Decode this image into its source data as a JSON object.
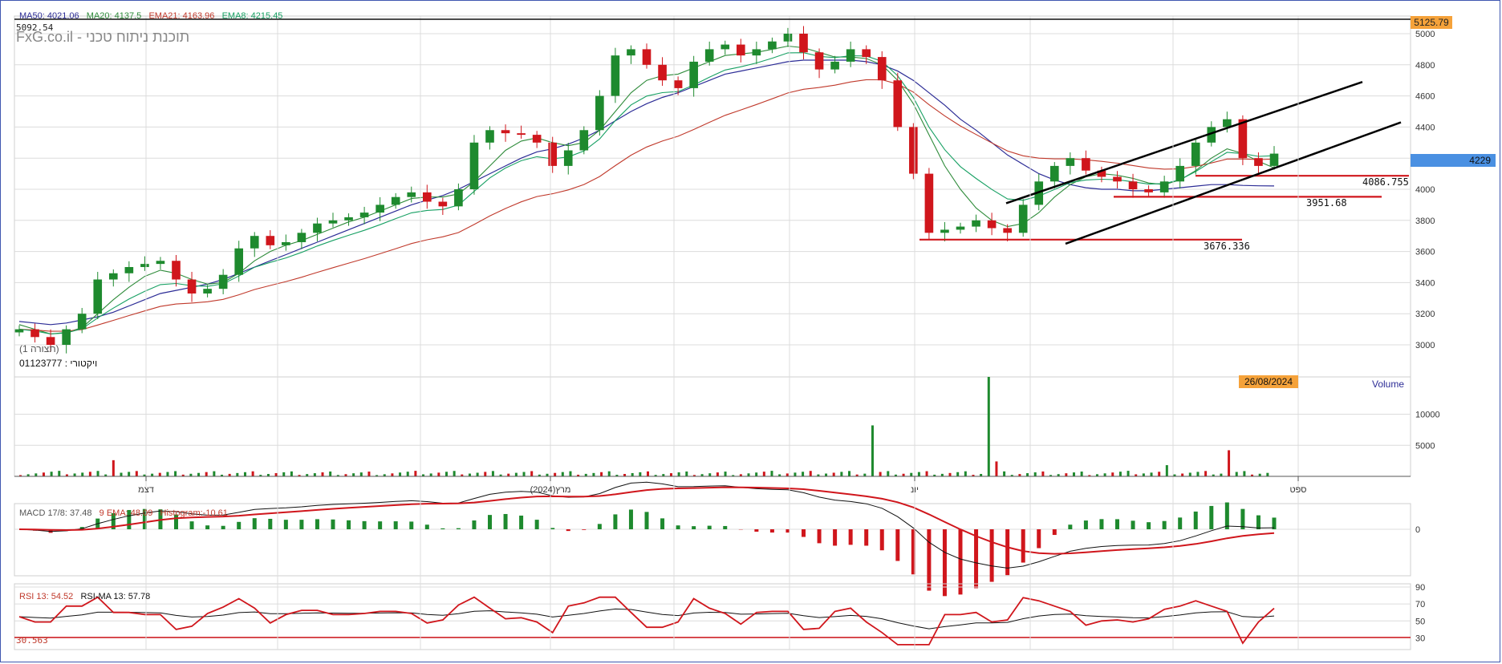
{
  "header": {
    "ma50": "MA50: 4021.06",
    "ma20": "MA20: 4137.5",
    "ema21": "EMA21: 4163.96",
    "ema8": "EMA8: 4215.45",
    "high_value": "5092.54",
    "watermark": "FxG.co.il - תוכנת ניתוח טכני",
    "symbol_label": "ויקטורי : 01123777",
    "pattern_label": "(תצורה 1)"
  },
  "colors": {
    "up": "#1e8a2e",
    "down": "#d0161c",
    "ma50": "#2c2c96",
    "ma20": "#2e8b3a",
    "ema21": "#c0392b",
    "ema8": "#17a063",
    "badge": "#f5a23a",
    "price_badge": "#4a90e2",
    "grid": "#dcdcdc",
    "frame": "#3f57b0"
  },
  "price_panel": {
    "y_ticks": [
      "5000",
      "4800",
      "4600",
      "4400",
      "4200",
      "4000",
      "3800",
      "3600",
      "3400",
      "3200",
      "3000"
    ],
    "top_badge": "5125.79",
    "last_price": "4229",
    "levels": [
      {
        "label": "4086.755",
        "value": 4086.755
      },
      {
        "label": "3951.68",
        "value": 3951.68
      },
      {
        "label": "3676.336",
        "value": 3676.336
      }
    ]
  },
  "volume_panel": {
    "title": "Volume",
    "date_badge": "26/08/2024",
    "y_ticks": [
      "10000",
      "5000"
    ]
  },
  "x_axis": {
    "labels": [
      "דצמ",
      "מרץ(2024)",
      "יונ",
      "ספט"
    ]
  },
  "macd_panel": {
    "label": "MACD 17/8: 37.48",
    "ema_label": "9 EMA: 48.09",
    "hist_label": "Histogram:-10.61",
    "y_ticks": [
      "0"
    ]
  },
  "rsi_panel": {
    "rsi_label": "RSI 13: 54.52",
    "rsima_label": "RSI-MA 13: 57.78",
    "level_value": "30.563",
    "y_ticks": [
      "90",
      "70",
      "50",
      "30"
    ]
  },
  "chart_data": {
    "type": "line",
    "title": "",
    "xlabel": "",
    "ylabel": "",
    "ylim": [
      2900,
      5100
    ],
    "x_labels": [
      "דצמ",
      "מרץ(2024)",
      "יונ",
      "ספט"
    ],
    "series": [
      {
        "name": "",
        "values": [
          3100,
          3050,
          3000,
          3100,
          3200,
          3420,
          3460,
          3500,
          3520,
          3540,
          3420,
          3330,
          3360,
          3450,
          3620,
          3700,
          3640,
          3660,
          3720,
          3780,
          3800,
          3820,
          3850,
          3900,
          3950,
          3980,
          3920,
          3890,
          4000,
          4300,
          4380,
          4360,
          4350,
          4300,
          4150,
          4250,
          4380,
          4600,
          4860,
          4900,
          4800,
          4700,
          4650,
          4820,
          4900,
          4930,
          4860,
          4900,
          4950,
          5000,
          4880,
          4770,
          4820,
          4900,
          4850,
          4700,
          4400,
          4100,
          3720,
          3740,
          3760,
          3800,
          3750,
          3720,
          3900,
          4050,
          4150,
          4200,
          4120,
          4080,
          4050,
          4000,
          3980,
          4050,
          4150,
          4300,
          4400,
          4450,
          4200,
          4150,
          4229
        ]
      },
      {
        "name": "MA50",
        "values": [
          3150,
          3140,
          3130,
          3140,
          3160,
          3180,
          3210,
          3250,
          3290,
          3330,
          3350,
          3370,
          3390,
          3420,
          3460,
          3500,
          3540,
          3580,
          3620,
          3660,
          3700,
          3740,
          3780,
          3820,
          3860,
          3900,
          3930,
          3960,
          4000,
          4050,
          4100,
          4150,
          4200,
          4240,
          4260,
          4290,
          4330,
          4380,
          4440,
          4500,
          4550,
          4590,
          4620,
          4660,
          4700,
          4740,
          4760,
          4780,
          4800,
          4820,
          4830,
          4830,
          4830,
          4830,
          4820,
          4800,
          4760,
          4700,
          4620,
          4540,
          4450,
          4380,
          4300,
          4220,
          4160,
          4100,
          4060,
          4030,
          4010,
          4000,
          4000,
          3990,
          3990,
          4000,
          4010,
          4020,
          4030,
          4030,
          4025,
          4022,
          4021
        ]
      },
      {
        "name": "MA20",
        "values": [
          3130,
          3100,
          3070,
          3080,
          3110,
          3200,
          3290,
          3370,
          3440,
          3480,
          3460,
          3420,
          3390,
          3400,
          3460,
          3540,
          3600,
          3640,
          3670,
          3710,
          3750,
          3790,
          3820,
          3860,
          3900,
          3940,
          3950,
          3950,
          3970,
          4050,
          4150,
          4250,
          4310,
          4330,
          4300,
          4280,
          4300,
          4380,
          4500,
          4620,
          4700,
          4730,
          4740,
          4780,
          4820,
          4860,
          4870,
          4880,
          4900,
          4920,
          4910,
          4880,
          4850,
          4850,
          4840,
          4800,
          4700,
          4550,
          4350,
          4150,
          4000,
          3880,
          3800,
          3760,
          3780,
          3850,
          3950,
          4030,
          4080,
          4100,
          4090,
          4070,
          4040,
          4030,
          4060,
          4120,
          4200,
          4260,
          4230,
          4180,
          4137
        ]
      }
    ]
  }
}
